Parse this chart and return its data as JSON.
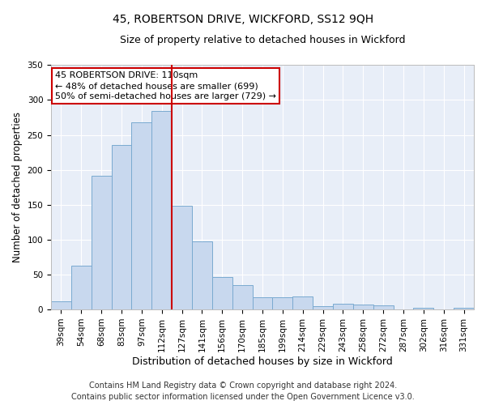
{
  "title": "45, ROBERTSON DRIVE, WICKFORD, SS12 9QH",
  "subtitle": "Size of property relative to detached houses in Wickford",
  "xlabel": "Distribution of detached houses by size in Wickford",
  "ylabel": "Number of detached properties",
  "categories": [
    "39sqm",
    "54sqm",
    "68sqm",
    "83sqm",
    "97sqm",
    "112sqm",
    "127sqm",
    "141sqm",
    "156sqm",
    "170sqm",
    "185sqm",
    "199sqm",
    "214sqm",
    "229sqm",
    "243sqm",
    "258sqm",
    "272sqm",
    "287sqm",
    "302sqm",
    "316sqm",
    "331sqm"
  ],
  "values": [
    12,
    63,
    191,
    236,
    268,
    284,
    149,
    97,
    47,
    35,
    17,
    18,
    19,
    5,
    8,
    7,
    6,
    0,
    3,
    0,
    2
  ],
  "bar_color": "#c8d8ee",
  "bar_edge_color": "#7aaad0",
  "background_color": "#e8eef8",
  "grid_color": "#ffffff",
  "ref_line_color": "#cc0000",
  "ref_line_index": 5,
  "annotation_line1": "45 ROBERTSON DRIVE: 110sqm",
  "annotation_line2": "← 48% of detached houses are smaller (699)",
  "annotation_line3": "50% of semi-detached houses are larger (729) →",
  "footer_line1": "Contains HM Land Registry data © Crown copyright and database right 2024.",
  "footer_line2": "Contains public sector information licensed under the Open Government Licence v3.0.",
  "ylim": [
    0,
    350
  ],
  "title_fontsize": 10,
  "subtitle_fontsize": 9,
  "xlabel_fontsize": 9,
  "ylabel_fontsize": 8.5,
  "tick_fontsize": 7.5,
  "annotation_fontsize": 8,
  "footer_fontsize": 7
}
